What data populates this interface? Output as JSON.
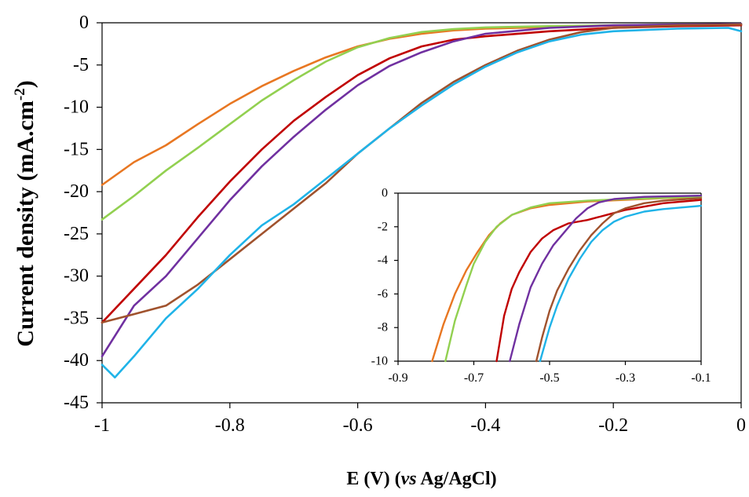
{
  "chart_data": [
    {
      "type": "line",
      "title": "",
      "xlabel_parts": [
        "E (V) (",
        "vs",
        " Ag/AgCl)"
      ],
      "ylabel_parts": [
        "Current density (mA.cm",
        "-2",
        ")"
      ],
      "xlim": [
        -1,
        0
      ],
      "ylim": [
        -45,
        0
      ],
      "x_ticks": [
        -1,
        -0.8,
        -0.6,
        -0.4,
        -0.2,
        0
      ],
      "x_tick_labels": [
        "-1",
        "-0.8",
        "-0.6",
        "-0.4",
        "-0.2",
        "0"
      ],
      "y_ticks": [
        0,
        -5,
        -10,
        -15,
        -20,
        -25,
        -30,
        -35,
        -40,
        -45
      ],
      "y_tick_labels": [
        "0",
        "-5",
        "-10",
        "-15",
        "-20",
        "-25",
        "-30",
        "-35",
        "-40",
        "-45"
      ],
      "grid": false,
      "legend": "none",
      "series": [
        {
          "color": "#e87722",
          "points": [
            [
              -1,
              -19.2
            ],
            [
              -0.95,
              -16.5
            ],
            [
              -0.9,
              -14.5
            ],
            [
              -0.85,
              -12
            ],
            [
              -0.8,
              -9.6
            ],
            [
              -0.75,
              -7.5
            ],
            [
              -0.7,
              -5.7
            ],
            [
              -0.65,
              -4.1
            ],
            [
              -0.6,
              -2.8
            ],
            [
              -0.55,
              -1.9
            ],
            [
              -0.5,
              -1.3
            ],
            [
              -0.45,
              -0.9
            ],
            [
              -0.4,
              -0.7
            ],
            [
              -0.3,
              -0.5
            ],
            [
              -0.2,
              -0.35
            ],
            [
              -0.1,
              -0.25
            ],
            [
              0,
              -0.2
            ]
          ]
        },
        {
          "color": "#92d050",
          "points": [
            [
              -1,
              -23.3
            ],
            [
              -0.95,
              -20.5
            ],
            [
              -0.9,
              -17.5
            ],
            [
              -0.85,
              -14.8
            ],
            [
              -0.8,
              -12
            ],
            [
              -0.75,
              -9.2
            ],
            [
              -0.7,
              -6.8
            ],
            [
              -0.65,
              -4.6
            ],
            [
              -0.6,
              -2.9
            ],
            [
              -0.55,
              -1.8
            ],
            [
              -0.5,
              -1.1
            ],
            [
              -0.45,
              -0.75
            ],
            [
              -0.4,
              -0.55
            ],
            [
              -0.3,
              -0.4
            ],
            [
              -0.2,
              -0.3
            ],
            [
              -0.1,
              -0.2
            ],
            [
              0,
              -0.15
            ]
          ]
        },
        {
          "color": "#c00000",
          "points": [
            [
              -1,
              -35.5
            ],
            [
              -0.95,
              -31.5
            ],
            [
              -0.9,
              -27.5
            ],
            [
              -0.85,
              -23
            ],
            [
              -0.8,
              -18.8
            ],
            [
              -0.75,
              -15
            ],
            [
              -0.7,
              -11.6
            ],
            [
              -0.65,
              -8.8
            ],
            [
              -0.6,
              -6.2
            ],
            [
              -0.55,
              -4.2
            ],
            [
              -0.5,
              -2.8
            ],
            [
              -0.45,
              -2
            ],
            [
              -0.4,
              -1.6
            ],
            [
              -0.3,
              -1
            ],
            [
              -0.2,
              -0.6
            ],
            [
              -0.1,
              -0.4
            ],
            [
              0,
              -0.3
            ]
          ]
        },
        {
          "color": "#7030a0",
          "points": [
            [
              -1,
              -39.5
            ],
            [
              -0.95,
              -33.5
            ],
            [
              -0.9,
              -30
            ],
            [
              -0.85,
              -25.5
            ],
            [
              -0.8,
              -21
            ],
            [
              -0.75,
              -17
            ],
            [
              -0.7,
              -13.5
            ],
            [
              -0.65,
              -10.3
            ],
            [
              -0.6,
              -7.4
            ],
            [
              -0.55,
              -5.1
            ],
            [
              -0.5,
              -3.5
            ],
            [
              -0.45,
              -2.2
            ],
            [
              -0.4,
              -1.3
            ],
            [
              -0.3,
              -0.6
            ],
            [
              -0.2,
              -0.3
            ],
            [
              -0.1,
              -0.2
            ],
            [
              0,
              -0.15
            ]
          ]
        },
        {
          "color": "#a0522d",
          "points": [
            [
              -1,
              -35.5
            ],
            [
              -0.95,
              -34.5
            ],
            [
              -0.9,
              -33.5
            ],
            [
              -0.85,
              -31
            ],
            [
              -0.8,
              -28
            ],
            [
              -0.75,
              -25
            ],
            [
              -0.7,
              -22
            ],
            [
              -0.65,
              -19
            ],
            [
              -0.6,
              -15.5
            ],
            [
              -0.55,
              -12.5
            ],
            [
              -0.5,
              -9.5
            ],
            [
              -0.45,
              -7
            ],
            [
              -0.4,
              -5
            ],
            [
              -0.35,
              -3.3
            ],
            [
              -0.3,
              -2
            ],
            [
              -0.25,
              -1.1
            ],
            [
              -0.2,
              -0.6
            ],
            [
              -0.1,
              -0.3
            ],
            [
              0,
              -0.2
            ]
          ]
        },
        {
          "color": "#1fb3e8",
          "points": [
            [
              -1,
              -40.5
            ],
            [
              -0.98,
              -42
            ],
            [
              -0.95,
              -39.5
            ],
            [
              -0.9,
              -35
            ],
            [
              -0.85,
              -31.5
            ],
            [
              -0.8,
              -27.5
            ],
            [
              -0.75,
              -24
            ],
            [
              -0.7,
              -21.5
            ],
            [
              -0.65,
              -18.5
            ],
            [
              -0.6,
              -15.5
            ],
            [
              -0.55,
              -12.5
            ],
            [
              -0.5,
              -9.8
            ],
            [
              -0.45,
              -7.3
            ],
            [
              -0.4,
              -5.2
            ],
            [
              -0.35,
              -3.5
            ],
            [
              -0.3,
              -2.2
            ],
            [
              -0.25,
              -1.4
            ],
            [
              -0.2,
              -1
            ],
            [
              -0.1,
              -0.7
            ],
            [
              -0.02,
              -0.6
            ],
            [
              0,
              -1
            ]
          ]
        }
      ]
    },
    {
      "type": "line",
      "title": "",
      "inset": true,
      "xlim": [
        -0.9,
        -0.1
      ],
      "ylim": [
        -10,
        0
      ],
      "x_ticks": [
        -0.9,
        -0.7,
        -0.5,
        -0.3,
        -0.1
      ],
      "x_tick_labels": [
        "-0.9",
        "-0.7",
        "-0.5",
        "-0.3",
        "-0.1"
      ],
      "y_ticks": [
        0,
        -2,
        -4,
        -6,
        -8,
        -10
      ],
      "y_tick_labels": [
        "0",
        "-2",
        "-4",
        "-6",
        "-8",
        "-10"
      ],
      "grid": false,
      "legend": "none",
      "series": [
        {
          "color": "#e87722",
          "points": [
            [
              -0.81,
              -10
            ],
            [
              -0.78,
              -7.8
            ],
            [
              -0.75,
              -6
            ],
            [
              -0.72,
              -4.6
            ],
            [
              -0.69,
              -3.5
            ],
            [
              -0.66,
              -2.5
            ],
            [
              -0.63,
              -1.8
            ],
            [
              -0.6,
              -1.3
            ],
            [
              -0.55,
              -0.9
            ],
            [
              -0.5,
              -0.7
            ],
            [
              -0.4,
              -0.5
            ],
            [
              -0.3,
              -0.4
            ],
            [
              -0.2,
              -0.3
            ],
            [
              -0.1,
              -0.25
            ]
          ]
        },
        {
          "color": "#92d050",
          "points": [
            [
              -0.775,
              -10
            ],
            [
              -0.75,
              -7.6
            ],
            [
              -0.72,
              -5.5
            ],
            [
              -0.7,
              -4.2
            ],
            [
              -0.67,
              -2.9
            ],
            [
              -0.64,
              -2
            ],
            [
              -0.6,
              -1.3
            ],
            [
              -0.55,
              -0.85
            ],
            [
              -0.5,
              -0.6
            ],
            [
              -0.4,
              -0.45
            ],
            [
              -0.3,
              -0.35
            ],
            [
              -0.2,
              -0.28
            ],
            [
              -0.1,
              -0.2
            ]
          ]
        },
        {
          "color": "#c00000",
          "points": [
            [
              -0.64,
              -10
            ],
            [
              -0.62,
              -7.3
            ],
            [
              -0.6,
              -5.7
            ],
            [
              -0.58,
              -4.7
            ],
            [
              -0.55,
              -3.5
            ],
            [
              -0.52,
              -2.7
            ],
            [
              -0.49,
              -2.2
            ],
            [
              -0.45,
              -1.8
            ],
            [
              -0.4,
              -1.6
            ],
            [
              -0.35,
              -1.3
            ],
            [
              -0.3,
              -1
            ],
            [
              -0.2,
              -0.6
            ],
            [
              -0.1,
              -0.4
            ]
          ]
        },
        {
          "color": "#7030a0",
          "points": [
            [
              -0.605,
              -10
            ],
            [
              -0.58,
              -7.8
            ],
            [
              -0.55,
              -5.6
            ],
            [
              -0.52,
              -4.2
            ],
            [
              -0.49,
              -3.1
            ],
            [
              -0.46,
              -2.3
            ],
            [
              -0.43,
              -1.5
            ],
            [
              -0.4,
              -0.9
            ],
            [
              -0.37,
              -0.55
            ],
            [
              -0.33,
              -0.35
            ],
            [
              -0.25,
              -0.22
            ],
            [
              -0.1,
              -0.15
            ]
          ]
        },
        {
          "color": "#a0522d",
          "points": [
            [
              -0.535,
              -10
            ],
            [
              -0.52,
              -8.6
            ],
            [
              -0.5,
              -7
            ],
            [
              -0.48,
              -5.8
            ],
            [
              -0.45,
              -4.5
            ],
            [
              -0.42,
              -3.4
            ],
            [
              -0.39,
              -2.5
            ],
            [
              -0.36,
              -1.8
            ],
            [
              -0.33,
              -1.2
            ],
            [
              -0.3,
              -0.9
            ],
            [
              -0.25,
              -0.6
            ],
            [
              -0.2,
              -0.45
            ],
            [
              -0.1,
              -0.3
            ]
          ]
        },
        {
          "color": "#1fb3e8",
          "points": [
            [
              -0.525,
              -10
            ],
            [
              -0.5,
              -8
            ],
            [
              -0.48,
              -6.7
            ],
            [
              -0.45,
              -5.1
            ],
            [
              -0.42,
              -3.9
            ],
            [
              -0.39,
              -2.9
            ],
            [
              -0.36,
              -2.2
            ],
            [
              -0.33,
              -1.7
            ],
            [
              -0.3,
              -1.4
            ],
            [
              -0.25,
              -1.1
            ],
            [
              -0.2,
              -0.95
            ],
            [
              -0.15,
              -0.85
            ],
            [
              -0.1,
              -0.75
            ]
          ]
        }
      ]
    }
  ]
}
